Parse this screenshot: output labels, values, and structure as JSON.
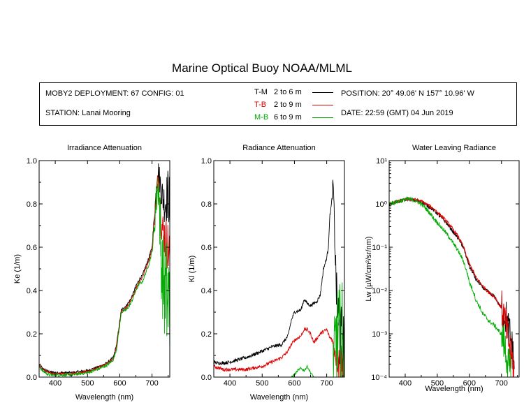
{
  "title": "Marine Optical Buoy NOAA/MLML",
  "info": {
    "deployment": "MOBY2 DEPLOYMENT: 67 CONFIG: 01",
    "station": "STATION: Lanai Mooring",
    "position": "POSITION: 20° 49.06' N   157° 10.96' W",
    "date": "DATE: 22:59 (GMT) 04 Jun 2019",
    "legend": [
      {
        "code": "T-M",
        "range": "2 to 6  m",
        "color": "#000000"
      },
      {
        "code": "T-B",
        "range": "2 to 9  m",
        "color": "#dd0000"
      },
      {
        "code": "M-B",
        "range": "6 to 9  m",
        "color": "#00aa00"
      }
    ]
  },
  "chart_data": [
    {
      "type": "line",
      "title": "Irradiance Attenuation",
      "xlabel": "Wavelength (nm)",
      "ylabel": "Ke  (1/m)",
      "xlim": [
        350,
        755
      ],
      "ylim": [
        0,
        1.0
      ],
      "xticks": [
        400,
        500,
        600,
        700
      ],
      "yticks": [
        0.0,
        0.2,
        0.4,
        0.6,
        0.8,
        1.0
      ],
      "ytick_labels": [
        "0.0",
        "0.2",
        "0.4",
        "0.6",
        "0.8",
        "1.0"
      ],
      "series": [
        {
          "color": "#000000",
          "noise": 0.006,
          "noise_start": 700,
          "noise_amp": 0.12,
          "points": [
            [
              350,
              0.06
            ],
            [
              360,
              0.04
            ],
            [
              380,
              0.025
            ],
            [
              400,
              0.02
            ],
            [
              450,
              0.02
            ],
            [
              500,
              0.03
            ],
            [
              530,
              0.045
            ],
            [
              560,
              0.065
            ],
            [
              580,
              0.09
            ],
            [
              590,
              0.15
            ],
            [
              600,
              0.26
            ],
            [
              605,
              0.31
            ],
            [
              620,
              0.33
            ],
            [
              630,
              0.35
            ],
            [
              640,
              0.38
            ],
            [
              650,
              0.42
            ],
            [
              660,
              0.45
            ],
            [
              670,
              0.47
            ],
            [
              680,
              0.51
            ],
            [
              690,
              0.55
            ],
            [
              700,
              0.6
            ],
            [
              705,
              0.7
            ],
            [
              710,
              0.8
            ],
            [
              715,
              0.9
            ],
            [
              720,
              0.95
            ],
            [
              730,
              0.85
            ],
            [
              740,
              0.8
            ],
            [
              750,
              0.85
            ],
            [
              755,
              0.8
            ]
          ]
        },
        {
          "color": "#dd0000",
          "noise": 0.006,
          "noise_start": 700,
          "noise_amp": 0.12,
          "points": [
            [
              350,
              0.055
            ],
            [
              360,
              0.035
            ],
            [
              380,
              0.02
            ],
            [
              400,
              0.015
            ],
            [
              450,
              0.015
            ],
            [
              500,
              0.025
            ],
            [
              530,
              0.04
            ],
            [
              560,
              0.06
            ],
            [
              580,
              0.085
            ],
            [
              590,
              0.14
            ],
            [
              600,
              0.25
            ],
            [
              605,
              0.3
            ],
            [
              620,
              0.32
            ],
            [
              630,
              0.34
            ],
            [
              640,
              0.37
            ],
            [
              650,
              0.41
            ],
            [
              660,
              0.44
            ],
            [
              670,
              0.46
            ],
            [
              680,
              0.5
            ],
            [
              690,
              0.54
            ],
            [
              700,
              0.59
            ],
            [
              705,
              0.68
            ],
            [
              710,
              0.78
            ],
            [
              715,
              0.88
            ],
            [
              720,
              0.92
            ],
            [
              730,
              0.7
            ],
            [
              740,
              0.65
            ],
            [
              750,
              0.6
            ],
            [
              755,
              0.55
            ]
          ]
        },
        {
          "color": "#00aa00",
          "noise": 0.007,
          "noise_start": 700,
          "noise_amp": 0.3,
          "points": [
            [
              350,
              0.05
            ],
            [
              360,
              0.03
            ],
            [
              380,
              0.01
            ],
            [
              400,
              0.01
            ],
            [
              450,
              0.01
            ],
            [
              500,
              0.02
            ],
            [
              530,
              0.035
            ],
            [
              560,
              0.055
            ],
            [
              580,
              0.08
            ],
            [
              590,
              0.13
            ],
            [
              600,
              0.24
            ],
            [
              605,
              0.3
            ],
            [
              620,
              0.31
            ],
            [
              630,
              0.33
            ],
            [
              640,
              0.36
            ],
            [
              650,
              0.4
            ],
            [
              660,
              0.43
            ],
            [
              670,
              0.44
            ],
            [
              680,
              0.48
            ],
            [
              690,
              0.52
            ],
            [
              700,
              0.58
            ],
            [
              705,
              0.65
            ],
            [
              710,
              0.75
            ],
            [
              715,
              0.85
            ],
            [
              720,
              0.9
            ],
            [
              730,
              0.5
            ],
            [
              740,
              0.4
            ],
            [
              750,
              0.35
            ],
            [
              755,
              0.3
            ]
          ]
        }
      ]
    },
    {
      "type": "line",
      "title": "Radiance Attenuation",
      "xlabel": "Wavelength (nm)",
      "ylabel": "Kl  (1/m)",
      "xlim": [
        350,
        755
      ],
      "ylim": [
        0,
        1.0
      ],
      "xticks": [
        400,
        500,
        600,
        700
      ],
      "yticks": [
        0.0,
        0.2,
        0.4,
        0.6,
        0.8,
        1.0
      ],
      "ytick_labels": [
        "0.0",
        "0.2",
        "0.4",
        "0.6",
        "0.8",
        "1.0"
      ],
      "series": [
        {
          "color": "#000000",
          "noise": 0.008,
          "noise_start": 715,
          "noise_amp": 0.3,
          "points": [
            [
              350,
              0.07
            ],
            [
              360,
              0.065
            ],
            [
              380,
              0.065
            ],
            [
              400,
              0.07
            ],
            [
              450,
              0.09
            ],
            [
              500,
              0.12
            ],
            [
              530,
              0.14
            ],
            [
              560,
              0.15
            ],
            [
              580,
              0.19
            ],
            [
              590,
              0.26
            ],
            [
              600,
              0.3
            ],
            [
              620,
              0.31
            ],
            [
              630,
              0.36
            ],
            [
              640,
              0.34
            ],
            [
              650,
              0.33
            ],
            [
              660,
              0.34
            ],
            [
              670,
              0.35
            ],
            [
              680,
              0.38
            ],
            [
              690,
              0.5
            ],
            [
              700,
              0.55
            ],
            [
              705,
              0.6
            ],
            [
              710,
              0.75
            ],
            [
              715,
              0.8
            ],
            [
              720,
              0.9
            ],
            [
              730,
              0.4
            ],
            [
              740,
              0.2
            ],
            [
              750,
              0.1
            ],
            [
              755,
              0.05
            ]
          ]
        },
        {
          "color": "#dd0000",
          "noise": 0.008,
          "noise_start": 715,
          "noise_amp": 0.2,
          "points": [
            [
              350,
              0.05
            ],
            [
              360,
              0.045
            ],
            [
              380,
              0.035
            ],
            [
              400,
              0.035
            ],
            [
              450,
              0.035
            ],
            [
              500,
              0.05
            ],
            [
              530,
              0.07
            ],
            [
              560,
              0.09
            ],
            [
              580,
              0.12
            ],
            [
              590,
              0.15
            ],
            [
              600,
              0.17
            ],
            [
              620,
              0.19
            ],
            [
              630,
              0.22
            ],
            [
              640,
              0.22
            ],
            [
              650,
              0.2
            ],
            [
              660,
              0.16
            ],
            [
              670,
              0.18
            ],
            [
              680,
              0.2
            ],
            [
              690,
              0.21
            ],
            [
              700,
              0.22
            ],
            [
              705,
              0.2
            ],
            [
              710,
              0.18
            ],
            [
              715,
              0.18
            ],
            [
              720,
              0.15
            ],
            [
              730,
              0.1
            ],
            [
              740,
              0.05
            ],
            [
              750,
              0.03
            ],
            [
              755,
              0.02
            ]
          ]
        },
        {
          "color": "#00aa00",
          "noise": 0.006,
          "noise_start": 715,
          "noise_amp": 0.35,
          "points": [
            [
              590,
              0.0
            ],
            [
              600,
              0.01
            ],
            [
              610,
              0.03
            ],
            [
              620,
              0.04
            ],
            [
              630,
              0.03
            ],
            [
              640,
              0.05
            ],
            [
              650,
              0.02
            ],
            [
              660,
              0.0
            ]
          ]
        },
        {
          "color": "#00aa00",
          "noise": 0.006,
          "noise_start": 700,
          "noise_amp": 0.35,
          "points": [
            [
              720,
              0.05
            ],
            [
              730,
              0.2
            ],
            [
              740,
              0.15
            ],
            [
              750,
              0.1
            ],
            [
              755,
              0.05
            ]
          ]
        }
      ]
    },
    {
      "type": "line",
      "title": "Water Leaving Radiance",
      "xlabel": "Wavelength (nm)",
      "ylabel": "Lw  (µW/cm²/sr/nm)",
      "xlim": [
        350,
        755
      ],
      "ylim": [
        0.0001,
        10
      ],
      "yscale": "log",
      "xticks": [
        400,
        500,
        600,
        700
      ],
      "yticks": [
        0.0001,
        0.001,
        0.01,
        0.1,
        1,
        10
      ],
      "ytick_labels": [
        "10⁻⁴",
        "10⁻³",
        "10⁻²",
        "10⁻¹",
        "10⁰",
        "10¹"
      ],
      "series": [
        {
          "color": "#000000",
          "noise": 0.04,
          "noise_start": 700,
          "noise_amp": 0.1,
          "points": [
            [
              350,
              1.0
            ],
            [
              370,
              1.1
            ],
            [
              390,
              1.2
            ],
            [
              410,
              1.3
            ],
            [
              430,
              1.2
            ],
            [
              450,
              1.1
            ],
            [
              470,
              0.9
            ],
            [
              490,
              0.7
            ],
            [
              510,
              0.5
            ],
            [
              530,
              0.35
            ],
            [
              550,
              0.22
            ],
            [
              570,
              0.14
            ],
            [
              590,
              0.06
            ],
            [
              600,
              0.035
            ],
            [
              620,
              0.018
            ],
            [
              640,
              0.012
            ],
            [
              660,
              0.009
            ],
            [
              680,
              0.007
            ],
            [
              690,
              0.005
            ],
            [
              700,
              0.004
            ],
            [
              710,
              0.003
            ],
            [
              720,
              0.0015
            ],
            [
              730,
              0.0006
            ],
            [
              740,
              0.0002
            ]
          ]
        },
        {
          "color": "#dd0000",
          "noise": 0.04,
          "noise_start": 700,
          "noise_amp": 0.1,
          "points": [
            [
              350,
              1.0
            ],
            [
              370,
              1.1
            ],
            [
              390,
              1.2
            ],
            [
              410,
              1.3
            ],
            [
              430,
              1.25
            ],
            [
              450,
              1.15
            ],
            [
              470,
              0.95
            ],
            [
              490,
              0.75
            ],
            [
              510,
              0.55
            ],
            [
              530,
              0.38
            ],
            [
              550,
              0.25
            ],
            [
              570,
              0.15
            ],
            [
              590,
              0.065
            ],
            [
              600,
              0.04
            ],
            [
              620,
              0.02
            ],
            [
              640,
              0.013
            ],
            [
              660,
              0.009
            ],
            [
              680,
              0.007
            ],
            [
              690,
              0.005
            ],
            [
              700,
              0.004
            ],
            [
              710,
              0.002
            ],
            [
              720,
              0.0008
            ],
            [
              730,
              0.0003
            ],
            [
              740,
              0.00015
            ]
          ]
        },
        {
          "color": "#00aa00",
          "noise": 0.05,
          "noise_start": 700,
          "noise_amp": 0.1,
          "points": [
            [
              350,
              1.0
            ],
            [
              370,
              1.1
            ],
            [
              390,
              1.2
            ],
            [
              410,
              1.3
            ],
            [
              430,
              1.2
            ],
            [
              450,
              1.0
            ],
            [
              470,
              0.7
            ],
            [
              490,
              0.45
            ],
            [
              510,
              0.3
            ],
            [
              530,
              0.2
            ],
            [
              550,
              0.12
            ],
            [
              570,
              0.07
            ],
            [
              590,
              0.03
            ],
            [
              600,
              0.015
            ],
            [
              620,
              0.006
            ],
            [
              640,
              0.003
            ],
            [
              660,
              0.002
            ],
            [
              680,
              0.0015
            ],
            [
              690,
              0.0012
            ],
            [
              700,
              0.001
            ],
            [
              710,
              0.0005
            ],
            [
              720,
              0.0002
            ],
            [
              730,
              0.0001
            ]
          ]
        }
      ]
    }
  ]
}
